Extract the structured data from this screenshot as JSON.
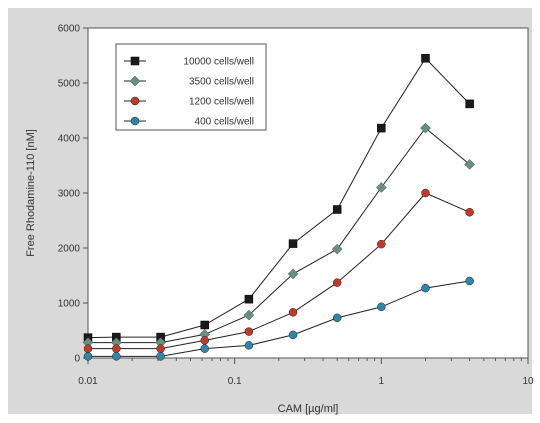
{
  "chart_data": {
    "type": "line",
    "title": "",
    "xlabel": "CAM [µg/ml]",
    "ylabel": "Free Rhodamine-110 [nM]",
    "x_scale": "log",
    "xlim": [
      0.01,
      10
    ],
    "ylim": [
      0,
      6000
    ],
    "x_ticks": [
      0.01,
      0.1,
      1,
      10
    ],
    "x_tick_labels": [
      "0.01",
      "0.1",
      "1",
      "10"
    ],
    "y_ticks": [
      0,
      1000,
      2000,
      3000,
      4000,
      5000,
      6000
    ],
    "y_tick_labels": [
      "0",
      "1000",
      "2000",
      "3000",
      "4000",
      "5000",
      "6000"
    ],
    "grid": false,
    "legend_position": "top-left",
    "x": [
      0.01,
      0.0156,
      0.03125,
      0.0625,
      0.125,
      0.25,
      0.5,
      1,
      2,
      4
    ],
    "series": [
      {
        "name": "10000 cells/well",
        "color": "#1a1a1a",
        "marker": "square",
        "values": [
          370,
          380,
          380,
          600,
          1070,
          2080,
          2700,
          4180,
          5450,
          4620
        ]
      },
      {
        "name": "3500 cells/well",
        "color": "#6a8f80",
        "marker": "diamond",
        "values": [
          280,
          280,
          280,
          430,
          780,
          1530,
          1980,
          3100,
          4180,
          3520
        ]
      },
      {
        "name": "1200 cells/well",
        "color": "#c0392b",
        "marker": "circle",
        "values": [
          170,
          170,
          170,
          320,
          480,
          830,
          1370,
          2070,
          3000,
          2650
        ]
      },
      {
        "name": "400 cells/well",
        "color": "#2e86ab",
        "marker": "circle",
        "values": [
          30,
          30,
          30,
          170,
          230,
          420,
          730,
          930,
          1270,
          1400
        ]
      }
    ]
  }
}
